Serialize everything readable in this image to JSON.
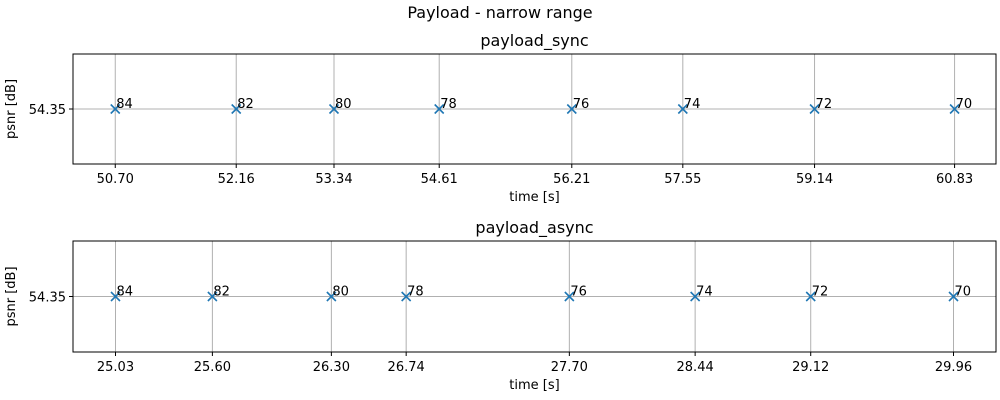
{
  "figure_title": "Payload - narrow range",
  "colors": {
    "marker": "#1f77b4",
    "grid": "#b0b0b0",
    "frame": "#000000"
  },
  "chart_data": [
    {
      "type": "scatter",
      "title": "payload_sync",
      "xlabel": "time [s]",
      "ylabel": "psnr [dB]",
      "marker": "x",
      "grid": true,
      "x_ticks": [
        "50.70",
        "52.16",
        "53.34",
        "54.61",
        "56.21",
        "57.55",
        "59.14",
        "60.83"
      ],
      "y_ticks": [
        "54.35"
      ],
      "xlim": [
        50.19,
        61.33
      ],
      "ylim": [
        54.3,
        54.4
      ],
      "points": [
        {
          "x": 50.7,
          "y": 54.35,
          "label": "84"
        },
        {
          "x": 52.16,
          "y": 54.35,
          "label": "82"
        },
        {
          "x": 53.34,
          "y": 54.35,
          "label": "80"
        },
        {
          "x": 54.61,
          "y": 54.35,
          "label": "78"
        },
        {
          "x": 56.21,
          "y": 54.35,
          "label": "76"
        },
        {
          "x": 57.55,
          "y": 54.35,
          "label": "74"
        },
        {
          "x": 59.14,
          "y": 54.35,
          "label": "72"
        },
        {
          "x": 60.83,
          "y": 54.35,
          "label": "70"
        }
      ]
    },
    {
      "type": "scatter",
      "title": "payload_async",
      "xlabel": "time [s]",
      "ylabel": "psnr [dB]",
      "marker": "x",
      "grid": true,
      "x_ticks": [
        "25.03",
        "25.60",
        "26.30",
        "26.74",
        "27.70",
        "28.44",
        "29.12",
        "29.96"
      ],
      "y_ticks": [
        "54.35"
      ],
      "xlim": [
        24.78,
        30.21
      ],
      "ylim": [
        54.3,
        54.4
      ],
      "points": [
        {
          "x": 25.03,
          "y": 54.35,
          "label": "84"
        },
        {
          "x": 25.6,
          "y": 54.35,
          "label": "82"
        },
        {
          "x": 26.3,
          "y": 54.35,
          "label": "80"
        },
        {
          "x": 26.74,
          "y": 54.35,
          "label": "78"
        },
        {
          "x": 27.7,
          "y": 54.35,
          "label": "76"
        },
        {
          "x": 28.44,
          "y": 54.35,
          "label": "74"
        },
        {
          "x": 29.12,
          "y": 54.35,
          "label": "72"
        },
        {
          "x": 29.96,
          "y": 54.35,
          "label": "70"
        }
      ]
    }
  ]
}
